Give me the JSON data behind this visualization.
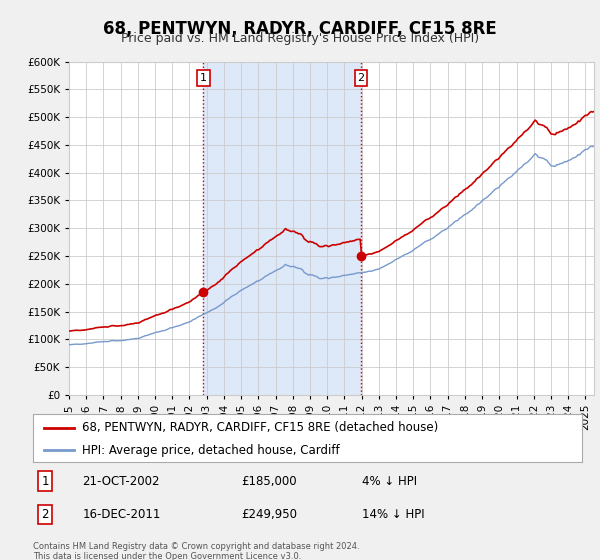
{
  "title": "68, PENTWYN, RADYR, CARDIFF, CF15 8RE",
  "subtitle": "Price paid vs. HM Land Registry's House Price Index (HPI)",
  "ylim": [
    0,
    600000
  ],
  "yticks": [
    0,
    50000,
    100000,
    150000,
    200000,
    250000,
    300000,
    350000,
    400000,
    450000,
    500000,
    550000,
    600000
  ],
  "ytick_labels": [
    "£0",
    "£50K",
    "£100K",
    "£150K",
    "£200K",
    "£250K",
    "£300K",
    "£350K",
    "£400K",
    "£450K",
    "£500K",
    "£550K",
    "£600K"
  ],
  "xlim_start": 1995.0,
  "xlim_end": 2025.5,
  "xtick_years": [
    1995,
    1996,
    1997,
    1998,
    1999,
    2000,
    2001,
    2002,
    2003,
    2004,
    2005,
    2006,
    2007,
    2008,
    2009,
    2010,
    2011,
    2012,
    2013,
    2014,
    2015,
    2016,
    2017,
    2018,
    2019,
    2020,
    2021,
    2022,
    2023,
    2024,
    2025
  ],
  "bg_color": "#f0f0f0",
  "plot_bg_color": "#ffffff",
  "grid_color": "#cccccc",
  "sale1_x": 2002.81,
  "sale1_y": 185000,
  "sale1_label": "1",
  "sale2_x": 2011.96,
  "sale2_y": 249950,
  "sale2_label": "2",
  "sale_color": "#cc0000",
  "hpi_color": "#7799cc",
  "shade_color": "#dde8f8",
  "legend_label1": "68, PENTWYN, RADYR, CARDIFF, CF15 8RE (detached house)",
  "legend_label2": "HPI: Average price, detached house, Cardiff",
  "annot1_date": "21-OCT-2002",
  "annot1_price": "£185,000",
  "annot1_hpi": "4% ↓ HPI",
  "annot2_date": "16-DEC-2011",
  "annot2_price": "£249,950",
  "annot2_hpi": "14% ↓ HPI",
  "footer": "Contains HM Land Registry data © Crown copyright and database right 2024.\nThis data is licensed under the Open Government Licence v3.0.",
  "title_fontsize": 12,
  "subtitle_fontsize": 9,
  "tick_fontsize": 7.5,
  "legend_fontsize": 8.5
}
